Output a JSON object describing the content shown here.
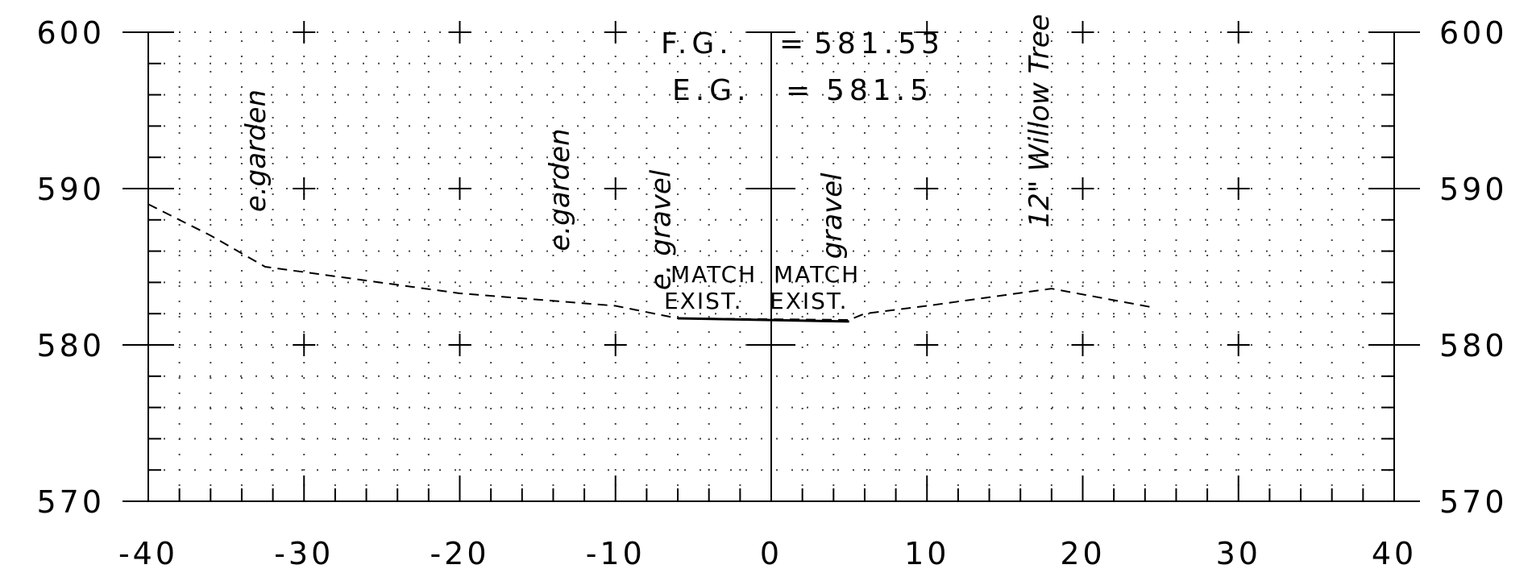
{
  "x_axis": {
    "min": -40,
    "max": 40,
    "major_step": 10,
    "labels": [
      "-40",
      "-30",
      "-20",
      "-10",
      "0",
      "10",
      "20",
      "30",
      "40"
    ]
  },
  "y_axis": {
    "min": 570,
    "max": 600,
    "major_step": 10,
    "labels": [
      "570",
      "580",
      "590",
      "600"
    ]
  },
  "grid": {
    "dotted_minor_lines": true,
    "plus_markers_at_major_intersections": true
  },
  "elevations": {
    "fg_label": "F.G.",
    "fg_eq": "=",
    "fg_value": "581.53",
    "eg_label": "E.G.",
    "eg_eq": "=",
    "eg_value": "581.5"
  },
  "notes": [
    {
      "text": "e.garden",
      "station": -32.5,
      "elevation": 588.5
    },
    {
      "text": "e.garden",
      "station": -13,
      "elevation": 586
    },
    {
      "text": "e. gravel",
      "station": -6.5,
      "elevation": 583.5
    },
    {
      "text": "gravel",
      "station": 4.5,
      "elevation": 585.5
    },
    {
      "text": "12\" Willow  Tree",
      "station": 17.8,
      "elevation": 587.5
    }
  ],
  "match_labels": [
    {
      "line1": "MATCH",
      "line2": "EXIST.",
      "station": -3
    },
    {
      "line1": "MATCH",
      "line2": "EXIST.",
      "station": 3
    }
  ],
  "existing_ground": [
    [
      -40,
      589
    ],
    [
      -36,
      587
    ],
    [
      -32.5,
      585
    ],
    [
      -20,
      583.3
    ],
    [
      -10,
      582.5
    ],
    [
      -6,
      581.7
    ],
    [
      5,
      581.6
    ],
    [
      6,
      582
    ],
    [
      10,
      582.5
    ],
    [
      18,
      583.6
    ],
    [
      24.5,
      582.4
    ]
  ],
  "finished_grade": [
    [
      -6,
      581.7
    ],
    [
      5,
      581.5
    ]
  ]
}
